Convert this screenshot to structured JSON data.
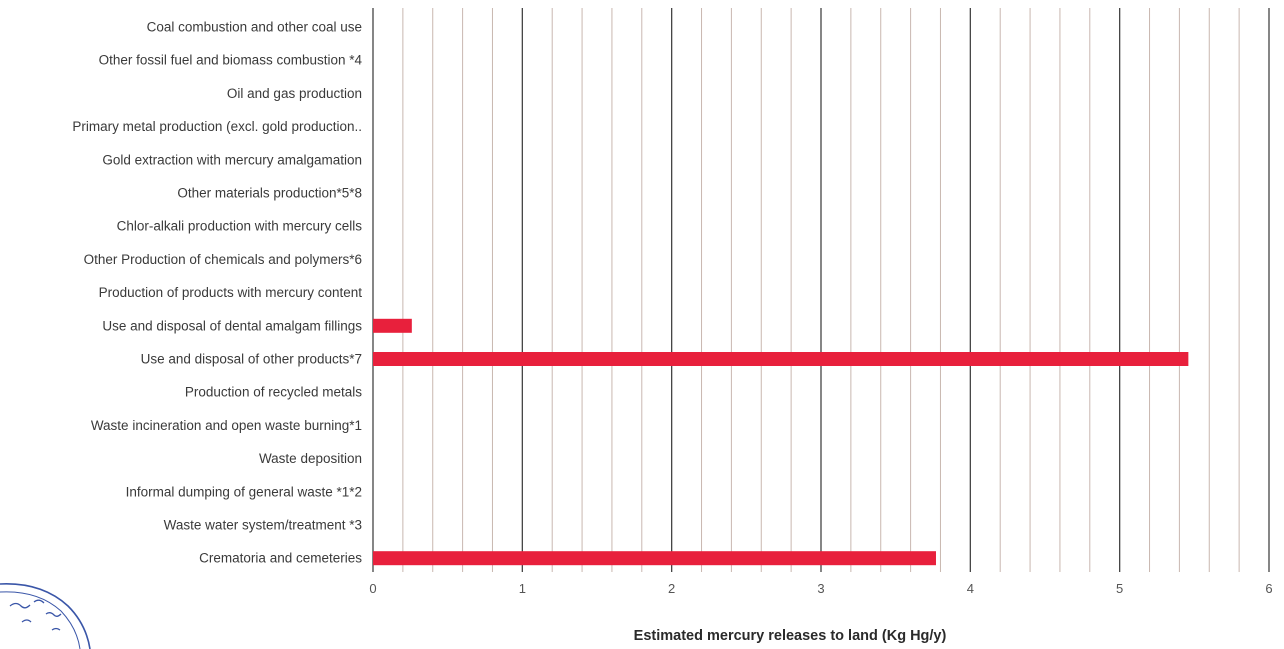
{
  "chart_data": {
    "type": "bar",
    "orientation": "horizontal",
    "title": "",
    "xlabel": "Estimated mercury releases to land (Kg Hg/y)",
    "ylabel": "",
    "xlim": [
      0,
      6
    ],
    "x_ticks": [
      "0",
      "1",
      "2",
      "3",
      "4",
      "5",
      "6"
    ],
    "minor_grid_step": 0.2,
    "grid": true,
    "bar_color": "#e8203c",
    "major_grid_color": "#444444",
    "minor_grid_color": "#c9b7b0",
    "categories": [
      "Coal combustion and other coal use",
      "Other fossil fuel and biomass combustion *4",
      "Oil and gas production",
      "Primary metal production (excl. gold production..",
      "Gold extraction with mercury amalgamation",
      "Other materials production*5*8",
      "Chlor-alkali production with mercury cells",
      "Other Production of chemicals and polymers*6",
      "Production of products with mercury content",
      "Use and disposal of dental amalgam fillings",
      "Use and disposal of other products*7",
      "Production of recycled metals",
      "Waste incineration and open waste burning*1",
      "Waste deposition",
      "Informal dumping of general waste *1*2",
      "Waste water system/treatment *3",
      "Crematoria and cemeteries"
    ],
    "values": [
      0,
      0,
      0,
      0,
      0,
      0,
      0,
      0,
      0,
      0.26,
      5.46,
      0,
      0,
      0,
      0,
      0,
      3.77
    ]
  }
}
